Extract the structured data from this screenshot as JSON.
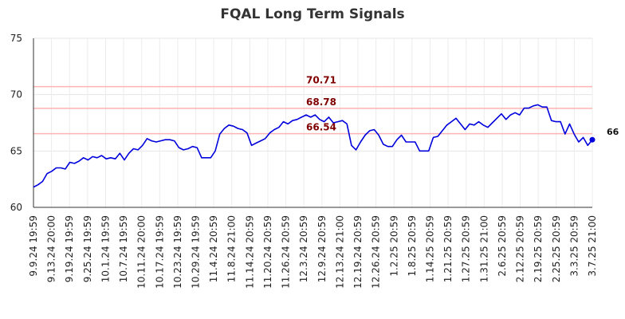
{
  "chart_data": {
    "type": "line",
    "title": "FQAL Long Term Signals",
    "xlabel": "",
    "ylabel": "",
    "ylim": [
      60,
      75
    ],
    "yticks": [
      60,
      65,
      70,
      75
    ],
    "grid": true,
    "x_tick_labels": [
      "9.9.24 19:59",
      "9.13.24 20:00",
      "9.19.24 19:59",
      "9.25.24 19:59",
      "10.1.24 19:59",
      "10.7.24 19:59",
      "10.11.24 20:00",
      "10.17.24 19:59",
      "10.23.24 19:59",
      "10.29.24 19:59",
      "11.4.24 20:59",
      "11.8.24 21:00",
      "11.14.24 20:59",
      "11.20.24 20:59",
      "11.26.24 20:59",
      "12.3.24 20:59",
      "12.9.24 20:59",
      "12.13.24 21:00",
      "12.19.24 20:59",
      "12.26.24 20:59",
      "1.2.25 20:59",
      "1.8.25 20:59",
      "1.14.25 20:59",
      "1.21.25 20:59",
      "1.27.25 20:59",
      "1.31.25 21:00",
      "2.6.25 20:59",
      "2.12.25 20:59",
      "2.19.25 20:59",
      "2.25.25 20:59",
      "3.3.25 20:59",
      "3.7.25 21:00"
    ],
    "reference_lines": [
      {
        "value": 70.71,
        "label": "70.71",
        "color": "#ffb3b3",
        "label_color": "#800000"
      },
      {
        "value": 68.78,
        "label": "68.78",
        "color": "#ffb3b3",
        "label_color": "#800000"
      },
      {
        "value": 66.54,
        "label": "66.54",
        "color": "#ffb3b3",
        "label_color": "#800000"
      }
    ],
    "last_value_label": "66",
    "series": [
      {
        "color": "#0000dd",
        "values": [
          61.8,
          62.0,
          62.3,
          63.0,
          63.2,
          63.5,
          63.5,
          63.4,
          64.0,
          63.9,
          64.1,
          64.4,
          64.2,
          64.5,
          64.4,
          64.6,
          64.3,
          64.4,
          64.3,
          64.8,
          64.2,
          64.8,
          65.2,
          65.1,
          65.5,
          66.1,
          65.9,
          65.8,
          65.9,
          66.0,
          66.0,
          65.9,
          65.3,
          65.1,
          65.2,
          65.4,
          65.3,
          64.4,
          64.4,
          64.4,
          65.0,
          66.5,
          67.0,
          67.3,
          67.2,
          67.0,
          66.9,
          66.6,
          65.5,
          65.7,
          65.9,
          66.1,
          66.6,
          66.9,
          67.1,
          67.6,
          67.4,
          67.7,
          67.8,
          68.0,
          68.2,
          68.0,
          68.2,
          67.8,
          67.6,
          68.0,
          67.5,
          67.6,
          67.7,
          67.4,
          65.5,
          65.1,
          65.8,
          66.4,
          66.8,
          66.9,
          66.4,
          65.6,
          65.4,
          65.4,
          66.0,
          66.4,
          65.8,
          65.8,
          65.8,
          65.0,
          65.0,
          65.0,
          66.2,
          66.3,
          66.8,
          67.3,
          67.6,
          67.9,
          67.4,
          66.9,
          67.4,
          67.3,
          67.6,
          67.3,
          67.1,
          67.5,
          67.9,
          68.3,
          67.8,
          68.2,
          68.4,
          68.2,
          68.8,
          68.8,
          69.0,
          69.1,
          68.9,
          68.9,
          67.7,
          67.6,
          67.6,
          66.5,
          67.4,
          66.5,
          65.8,
          66.2,
          65.5,
          66.0
        ]
      }
    ]
  }
}
